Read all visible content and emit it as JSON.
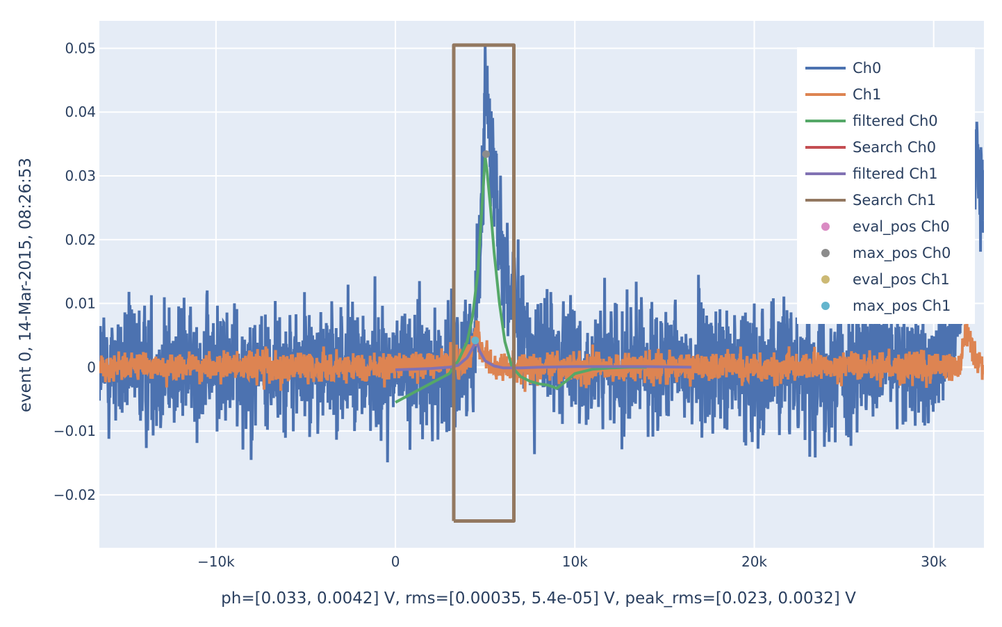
{
  "chart_data": {
    "type": "line",
    "title": "",
    "xlabel": "ph=[0.033, 0.0042] V, rms=[0.00035, 5.4e-05] V, peak_rms=[0.023, 0.0032] V",
    "ylabel": "event 0, 14-Mar-2015, 08:26:53",
    "xlim": [
      -16500,
      32800
    ],
    "ylim": [
      -0.0283,
      0.0543
    ],
    "x_ticks": [
      -10000,
      0,
      10000,
      20000,
      30000
    ],
    "x_tick_labels": [
      "−10k",
      "0",
      "10k",
      "20k",
      "30k"
    ],
    "y_ticks": [
      -0.02,
      -0.01,
      0,
      0.01,
      0.02,
      0.03,
      0.04,
      0.05
    ],
    "y_tick_labels": [
      "−0.02",
      "−0.01",
      "0",
      "0.01",
      "0.02",
      "0.03",
      "0.04",
      "0.05"
    ],
    "grid": true,
    "legend_position": "top-right",
    "colors": {
      "plot_bg": "#e5ecf6",
      "grid": "#ffffff",
      "Ch0": "#4c72b0",
      "Ch1": "#dd8452",
      "filtered Ch0": "#55a868",
      "Search Ch0": "#c44e52",
      "filtered Ch1": "#8172b3",
      "Search Ch1": "#937860",
      "eval_pos Ch0": "#da8bc3",
      "max_pos Ch0": "#8c8c8c",
      "eval_pos Ch1": "#ccb974",
      "max_pos Ch1": "#64b5cd"
    },
    "series": [
      {
        "name": "Ch0",
        "kind": "noisy-trace",
        "description_points": {
          "x": [
            -16500,
            -5000,
            3000,
            4300,
            4500,
            4700,
            4900,
            5000,
            5100,
            5300,
            5600,
            6000,
            6500,
            7000,
            8000,
            10000,
            15000,
            20000,
            25000,
            30000,
            31500,
            31800,
            32000,
            32200,
            32500,
            32800
          ],
          "baseline": [
            0,
            0,
            0,
            0.003,
            0.01,
            0.02,
            0.03,
            0.047,
            0.042,
            0.035,
            0.028,
            0.018,
            0.01,
            0.005,
            0.002,
            0,
            0,
            0,
            0,
            0,
            0.01,
            0.02,
            0.03,
            0.035,
            0.03,
            0.025
          ],
          "noise_amplitude": 0.0125,
          "min_value": -0.024,
          "max_value": 0.0505
        }
      },
      {
        "name": "Ch1",
        "kind": "noisy-trace",
        "description_points": {
          "x": [
            -16500,
            0,
            4000,
            4500,
            4800,
            5500,
            10000,
            30000,
            31500,
            31800,
            32200,
            32800
          ],
          "baseline": [
            0,
            0,
            0.001,
            0.0055,
            0.003,
            0,
            0,
            0,
            0,
            0.006,
            0.002,
            0
          ],
          "noise_amplitude": 0.003
        }
      },
      {
        "name": "filtered Ch0",
        "x": [
          0,
          1000,
          2000,
          3000,
          3500,
          4000,
          4300,
          4600,
          4800,
          5000,
          5100,
          5300,
          5500,
          5800,
          6100,
          6500,
          7000,
          7500,
          8000,
          8500,
          9000,
          9500,
          10000,
          11000,
          12000,
          13000,
          14000
        ],
        "y": [
          -0.0055,
          -0.004,
          -0.0025,
          -0.001,
          0.001,
          0.004,
          0.008,
          0.015,
          0.024,
          0.033,
          0.031,
          0.025,
          0.018,
          0.01,
          0.004,
          0.0,
          -0.0015,
          -0.0022,
          -0.0026,
          -0.0028,
          -0.0033,
          -0.0022,
          -0.001,
          -0.0003,
          -0.0001,
          0.0,
          0.0
        ]
      },
      {
        "name": "Search Ch0",
        "x": [],
        "y": []
      },
      {
        "name": "filtered Ch1",
        "x": [
          0,
          1000,
          2000,
          3000,
          3500,
          4000,
          4300,
          4500,
          4700,
          5000,
          5500,
          6000,
          7000,
          8000,
          10000,
          12000,
          14000,
          16500
        ],
        "y": [
          -0.0004,
          -0.0003,
          -0.0002,
          0.0,
          0.0003,
          0.0015,
          0.003,
          0.0042,
          0.0025,
          0.001,
          0.0002,
          -0.0001,
          -0.0001,
          0.0,
          0.0001,
          0.0001,
          0.0001,
          0.0
        ]
      },
      {
        "name": "Search Ch1",
        "x": [
          3250,
          3250,
          6600,
          6600,
          3250
        ],
        "y": [
          -0.0241,
          0.0505,
          0.0505,
          -0.0241,
          -0.0241
        ]
      },
      {
        "name": "eval_pos Ch0",
        "x": [],
        "y": []
      },
      {
        "name": "max_pos Ch0",
        "x": [
          5050
        ],
        "y": [
          0.0334
        ]
      },
      {
        "name": "eval_pos Ch1",
        "x": [],
        "y": []
      },
      {
        "name": "max_pos Ch1",
        "x": [
          4450
        ],
        "y": [
          0.0042
        ]
      }
    ],
    "legend": [
      {
        "label": "Ch0",
        "symbol": "line"
      },
      {
        "label": "Ch1",
        "symbol": "line"
      },
      {
        "label": "filtered Ch0",
        "symbol": "line"
      },
      {
        "label": "Search Ch0",
        "symbol": "line"
      },
      {
        "label": "filtered Ch1",
        "symbol": "line"
      },
      {
        "label": "Search Ch1",
        "symbol": "line"
      },
      {
        "label": "eval_pos Ch0",
        "symbol": "marker"
      },
      {
        "label": "max_pos Ch0",
        "symbol": "marker"
      },
      {
        "label": "eval_pos Ch1",
        "symbol": "marker"
      },
      {
        "label": "max_pos Ch1",
        "symbol": "marker"
      }
    ]
  }
}
